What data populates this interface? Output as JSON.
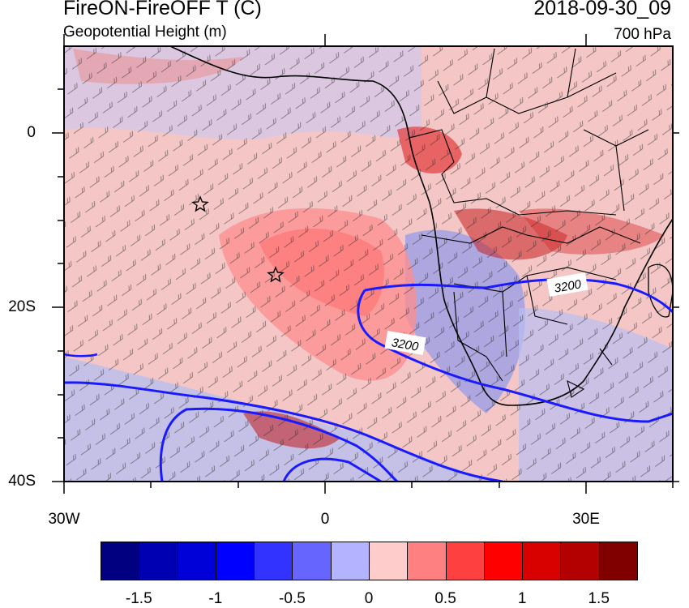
{
  "header": {
    "title": "FireON-FireOFF T (C)",
    "subtitle": "Geopotential Height (m)",
    "valid_time": "2018-09-30_09",
    "level": "700 hPa"
  },
  "axes": {
    "lat_labels": [
      "0",
      "20S",
      "40S"
    ],
    "lon_labels": [
      "30W",
      "0",
      "30E"
    ]
  },
  "contour": {
    "label": "3200",
    "color": "#1a1aff"
  },
  "colorbar": {
    "colors": [
      "#000080",
      "#0000b3",
      "#0000d9",
      "#0000ff",
      "#3333ff",
      "#6666ff",
      "#b3b3ff",
      "#ffcccc",
      "#ff8080",
      "#ff4040",
      "#ff0000",
      "#d90000",
      "#b30000",
      "#800000"
    ],
    "labels": [
      "-1.5",
      "-1",
      "-0.5",
      "0",
      "0.5",
      "1",
      "1.5"
    ]
  },
  "map": {
    "positive_color": "#ff9a9a",
    "negative_color": "#9fa8f2",
    "land_outline": "#000000",
    "markers": "star"
  }
}
